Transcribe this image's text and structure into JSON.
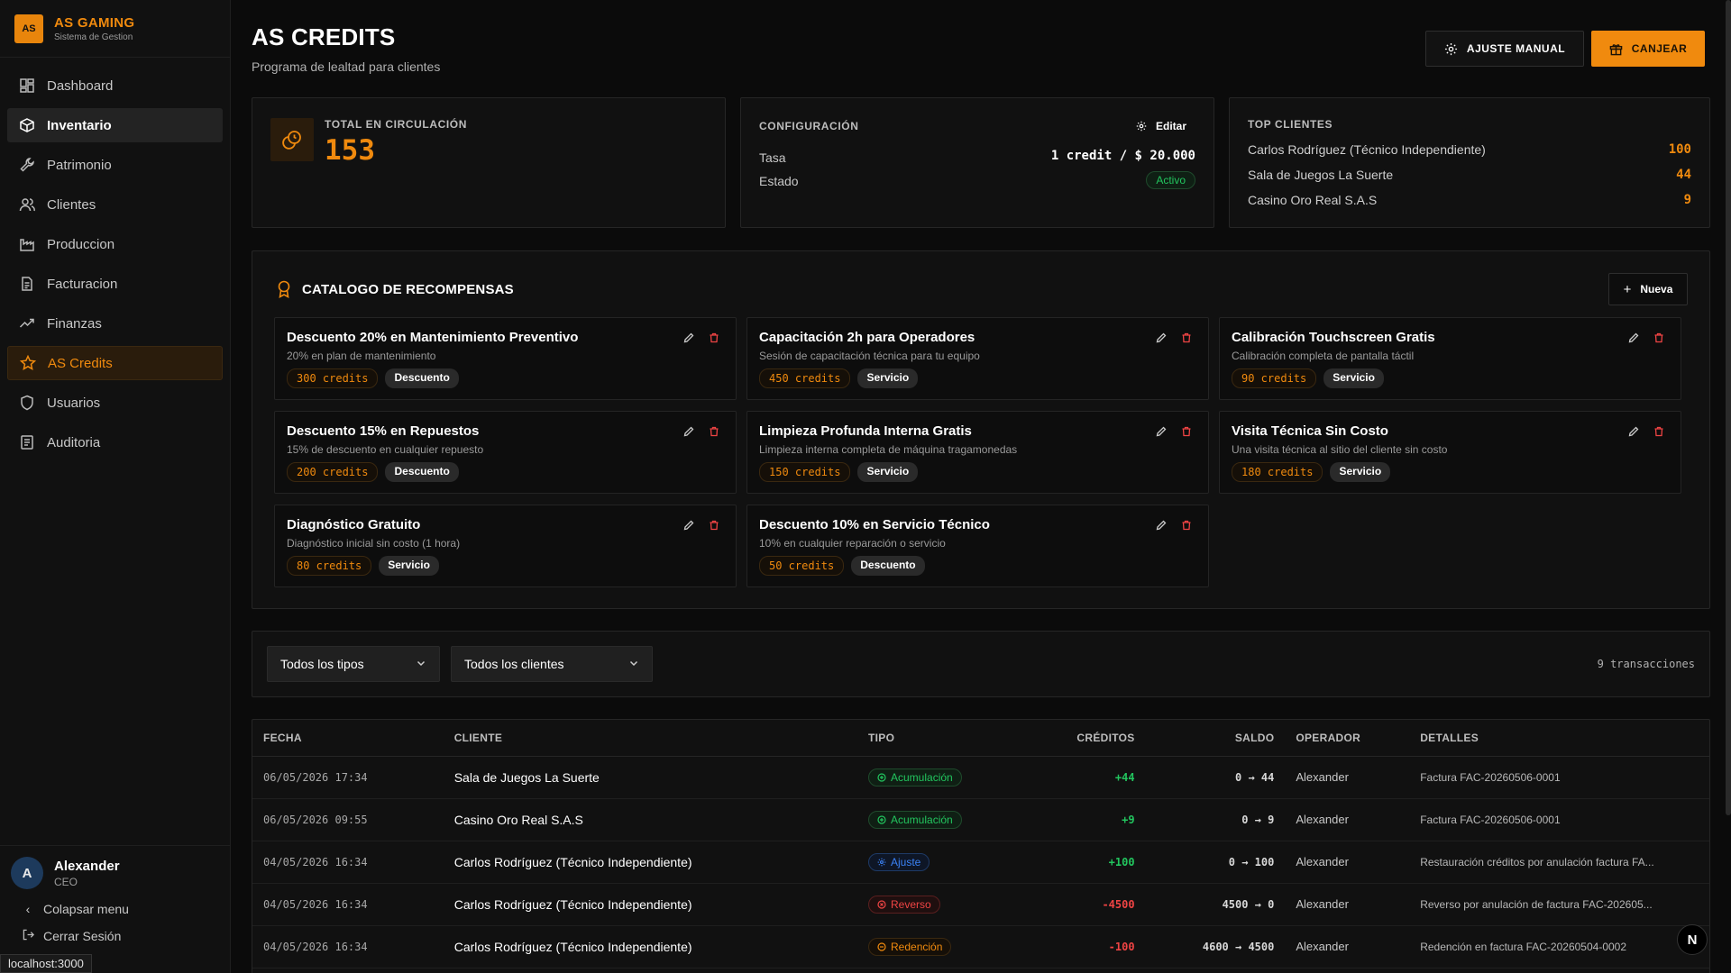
{
  "brand": {
    "logo": "AS",
    "title": "AS GAMING",
    "subtitle": "Sistema de Gestion"
  },
  "sidebar": {
    "items": [
      {
        "label": "Dashboard",
        "icon": "dashboard-icon"
      },
      {
        "label": "Inventario",
        "icon": "box-icon"
      },
      {
        "label": "Patrimonio",
        "icon": "wrench-icon"
      },
      {
        "label": "Clientes",
        "icon": "users-icon"
      },
      {
        "label": "Produccion",
        "icon": "factory-icon"
      },
      {
        "label": "Facturacion",
        "icon": "receipt-icon"
      },
      {
        "label": "Finanzas",
        "icon": "trend-icon"
      },
      {
        "label": "AS Credits",
        "icon": "star-icon"
      },
      {
        "label": "Usuarios",
        "icon": "shield-icon"
      },
      {
        "label": "Auditoria",
        "icon": "log-icon"
      }
    ],
    "user": {
      "initial": "A",
      "name": "Alexander",
      "role": "CEO"
    },
    "collapse_label": "Colapsar menu",
    "logout_label": "Cerrar Sesión",
    "url_tooltip": "localhost:3000"
  },
  "header": {
    "title": "AS CREDITS",
    "subtitle": "Programa de lealtad para clientes",
    "adjust_label": "AJUSTE MANUAL",
    "redeem_label": "CANJEAR"
  },
  "total": {
    "label": "TOTAL EN CIRCULACIÓN",
    "value": "153"
  },
  "config": {
    "label": "CONFIGURACIÓN",
    "edit_label": "Editar",
    "rate_label": "Tasa",
    "rate_value": "1 credit / $ 20.000",
    "status_label": "Estado",
    "status_value": "Activo"
  },
  "top_clients": {
    "label": "TOP CLIENTES",
    "rows": [
      {
        "name": "Carlos Rodríguez (Técnico Independiente)",
        "value": "100"
      },
      {
        "name": "Sala de Juegos La Suerte",
        "value": "44"
      },
      {
        "name": "Casino Oro Real S.A.S",
        "value": "9"
      }
    ]
  },
  "catalog": {
    "title": "CATALOGO DE RECOMPENSAS",
    "new_label": "Nueva",
    "rewards": [
      {
        "name": "Descuento 20% en Mantenimiento Preventivo",
        "desc": "20% en plan de mantenimiento",
        "credits": "300 credits",
        "type": "Descuento"
      },
      {
        "name": "Capacitación 2h para Operadores",
        "desc": "Sesión de capacitación técnica para tu equipo",
        "credits": "450 credits",
        "type": "Servicio"
      },
      {
        "name": "Calibración Touchscreen Gratis",
        "desc": "Calibración completa de pantalla táctil",
        "credits": "90 credits",
        "type": "Servicio"
      },
      {
        "name": "Descuento 15% en Repuestos",
        "desc": "15% de descuento en cualquier repuesto",
        "credits": "200 credits",
        "type": "Descuento"
      },
      {
        "name": "Limpieza Profunda Interna Gratis",
        "desc": "Limpieza interna completa de máquina tragamonedas",
        "credits": "150 credits",
        "type": "Servicio"
      },
      {
        "name": "Visita Técnica Sin Costo",
        "desc": "Una visita técnica al sitio del cliente sin costo",
        "credits": "180 credits",
        "type": "Servicio"
      },
      {
        "name": "Diagnóstico Gratuito",
        "desc": "Diagnóstico inicial sin costo (1 hora)",
        "credits": "80 credits",
        "type": "Servicio"
      },
      {
        "name": "Descuento 10% en Servicio Técnico",
        "desc": "10% en cualquier reparación o servicio",
        "credits": "50 credits",
        "type": "Descuento"
      }
    ]
  },
  "filters": {
    "types_value": "Todos los tipos",
    "clients_value": "Todos los clientes",
    "count_text": "9 transacciones"
  },
  "table": {
    "headers": {
      "date": "FECHA",
      "client": "CLIENTE",
      "type": "TIPO",
      "credits": "CRÉDITOS",
      "balance": "SALDO",
      "operator": "OPERADOR",
      "details": "DETALLES"
    },
    "rows": [
      {
        "date": "06/05/2026 17:34",
        "client": "Sala de Juegos La Suerte",
        "type": "Acumulación",
        "credits": "+44",
        "balance": "0 → 44",
        "operator": "Alexander",
        "details": "Factura FAC-20260506-0001"
      },
      {
        "date": "06/05/2026 09:55",
        "client": "Casino Oro Real S.A.S",
        "type": "Acumulación",
        "credits": "+9",
        "balance": "0 → 9",
        "operator": "Alexander",
        "details": "Factura FAC-20260506-0001"
      },
      {
        "date": "04/05/2026 16:34",
        "client": "Carlos Rodríguez (Técnico Independiente)",
        "type": "Ajuste",
        "credits": "+100",
        "balance": "0 → 100",
        "operator": "Alexander",
        "details": "Restauración créditos por anulación factura FA..."
      },
      {
        "date": "04/05/2026 16:34",
        "client": "Carlos Rodríguez (Técnico Independiente)",
        "type": "Reverso",
        "credits": "-4500",
        "balance": "4500 → 0",
        "operator": "Alexander",
        "details": "Reverso por anulación de factura FAC-202605..."
      },
      {
        "date": "04/05/2026 16:34",
        "client": "Carlos Rodríguez (Técnico Independiente)",
        "type": "Redención",
        "credits": "-100",
        "balance": "4600 → 4500",
        "operator": "Alexander",
        "details": "Redención en factura FAC-20260504-0002"
      }
    ]
  },
  "n_badge": "N",
  "colors": {
    "accent": "#f08a0e",
    "positive": "#22c55e",
    "negative": "#ef4444",
    "info": "#3b82f6"
  }
}
